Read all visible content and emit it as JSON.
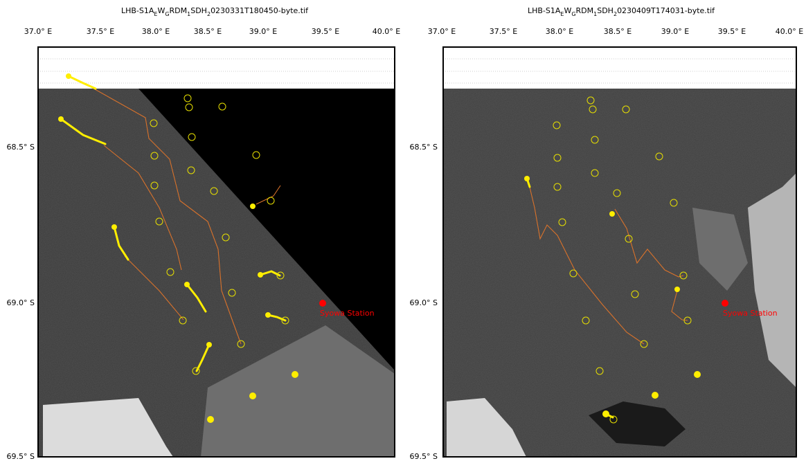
{
  "panels": [
    {
      "title_parts": [
        "LHB-S1A",
        "E",
        "W",
        "G",
        "RDM",
        "1",
        "SDH",
        "2",
        "0230331T180450-byte.tif"
      ],
      "lon_labels": [
        "37.0° E",
        "37.5° E",
        "38.0° E",
        "38.5° E",
        "39.0° E",
        "39.5° E",
        "40.0° E"
      ],
      "lat_labels": [
        "68.5° S",
        "69.0° S",
        "69.5° S"
      ],
      "station_label": "Syowa Station"
    },
    {
      "title_parts": [
        "LHB-S1A",
        "E",
        "W",
        "G",
        "RDM",
        "1",
        "SDH",
        "2",
        "0230409T174031-byte.tif"
      ],
      "lon_labels": [
        "37.0° E",
        "37.5° E",
        "38.0° E",
        "38.5° E",
        "39.0° E",
        "39.5° E",
        "40.0° E"
      ],
      "lat_labels": [
        "68.5° S",
        "69.0° S",
        "69.5° S"
      ],
      "station_label": "Syowa Station"
    }
  ]
}
